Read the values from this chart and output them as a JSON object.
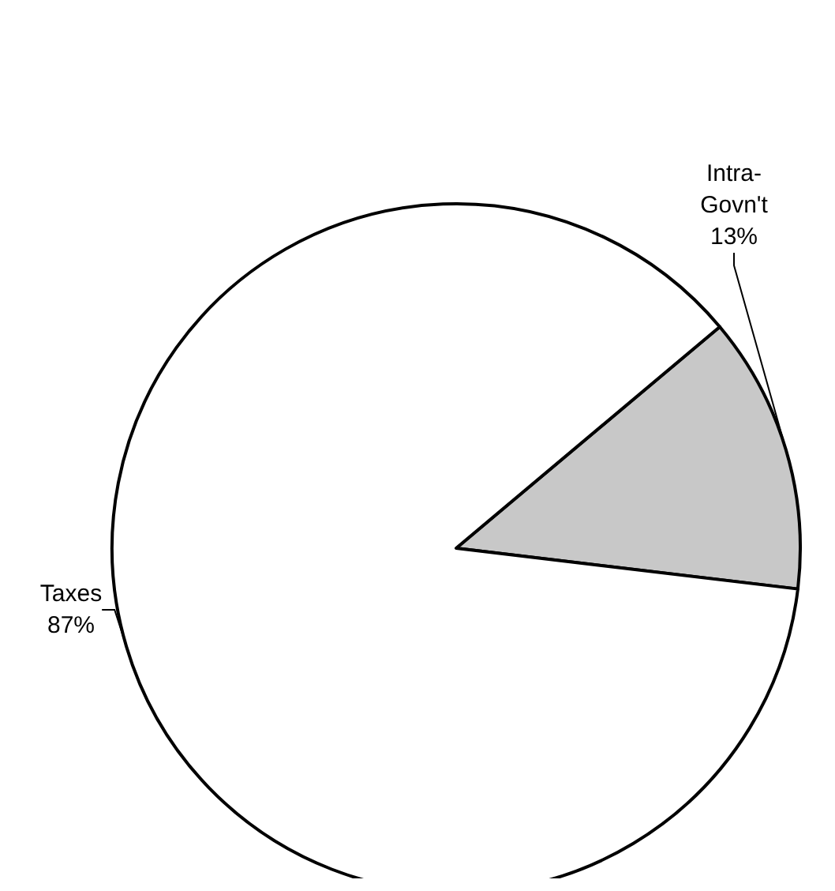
{
  "chart_data": {
    "type": "pie",
    "categories": [
      "Intra-Govn't",
      "Taxes"
    ],
    "values": [
      13,
      87
    ],
    "colors": [
      "#c8c8c8",
      "#ffffff"
    ],
    "value_labels": [
      "13%",
      "87%"
    ]
  }
}
